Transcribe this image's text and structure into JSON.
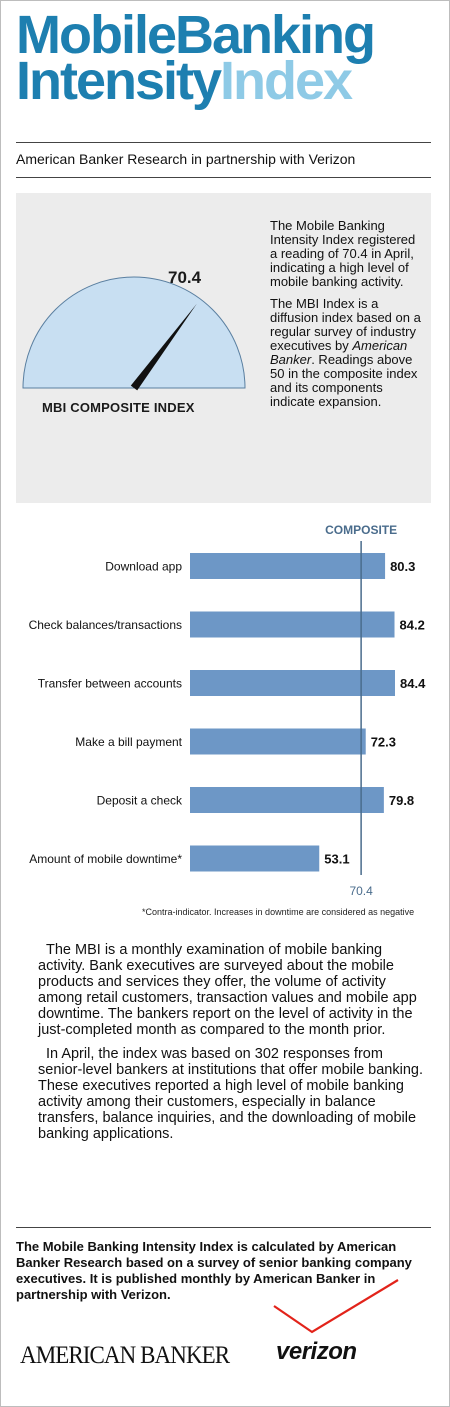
{
  "title": {
    "line1": "MobileBanking",
    "line2_part1": "Intensity",
    "line2_part2": "Index"
  },
  "subtitle": "American Banker Research in partnership with Verizon",
  "gauge": {
    "value": "70.4",
    "value_num": 70.4,
    "label": "MBI COMPOSITE INDEX",
    "paragraph1": "The Mobile Banking Intensity Index registered a reading of 70.4 in April, indicating a high level of mobile banking activity.",
    "paragraph2_part1": "The MBI Index is a diffusion index based on a regular survey of industry executives by ",
    "paragraph2_em": "American Banker",
    "paragraph2_part2": ". Readings above 50 in the composite index and its components indicate expansion.",
    "colors": {
      "fill": "#c8dff2",
      "needle": "#111111"
    }
  },
  "chart_data": {
    "type": "bar",
    "orientation": "horizontal",
    "categories": [
      "Download app",
      "Check balances/transactions",
      "Transfer between accounts",
      "Make a bill payment",
      "Deposit a check",
      "Amount of mobile downtime*"
    ],
    "values": [
      80.3,
      84.2,
      84.4,
      72.3,
      79.8,
      53.1
    ],
    "value_labels": [
      "80.3",
      "84.2",
      "84.4",
      "72.3",
      "79.8",
      "53.1"
    ],
    "reference_line": {
      "label": "COMPOSITE",
      "value": 70.4,
      "value_label": "70.4"
    },
    "bar_color": "#6d97c6",
    "reference_color": "#4a6c8c"
  },
  "footnote": "*Contra-indicator. Increases in downtime are considered as negative",
  "body": {
    "paragraph1": "The MBI is a monthly examination of mobile banking activity. Bank executives are surveyed about the mobile products and services they offer, the volume of activity among retail customers, transaction values and mobile app downtime. The bankers report on the level of activity in the just-completed month as compared to the month prior.",
    "paragraph2": "In April, the index was based on 302 responses from senior-level bankers at institutions that offer mobile banking. These executives reported a high level of mobile banking activity among their customers, especially in balance transfers, balance inquiries, and the downloading of mobile banking applications."
  },
  "footer": {
    "text": "The Mobile Banking Intensity Index is calculated by American Banker Research based on a survey of senior banking company executives. It is published monthly by American Banker in partnership with Verizon."
  },
  "logos": {
    "american_banker": "AMERICAN BANKER",
    "verizon": "verizon",
    "verizon_check_color": "#e2231a"
  }
}
